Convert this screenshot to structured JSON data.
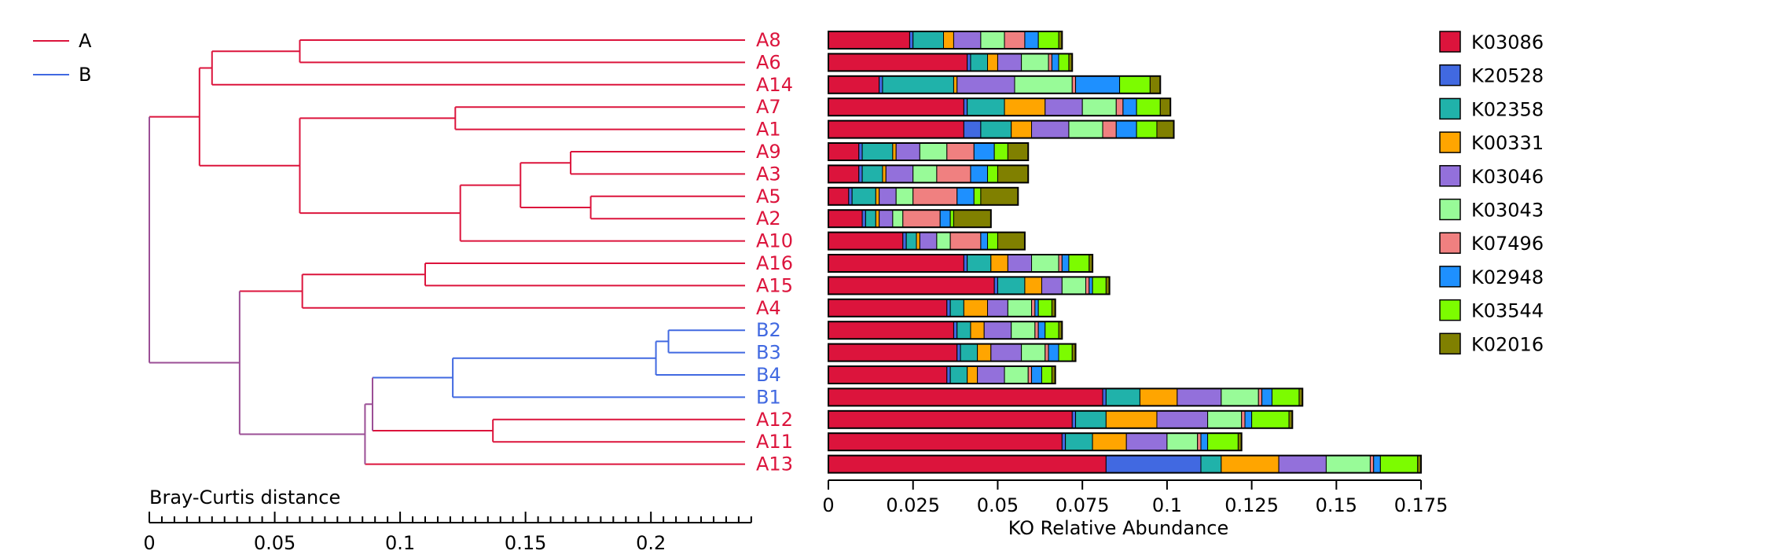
{
  "colors": {
    "group_A": "#DC143C",
    "group_B": "#4169E1",
    "root_branch": "#9B4F96",
    "bar_outline": "#000000"
  },
  "chart_data": [
    {
      "type": "dendrogram",
      "title": "",
      "axis_label": "Bray-Curtis distance",
      "axis_ticks": [
        "0",
        "0.05",
        "0.1",
        "0.15",
        "0.2"
      ],
      "tick_values": [
        0,
        0.05,
        0.1,
        0.15,
        0.2
      ],
      "xlim": [
        0,
        0.24
      ],
      "legend": {
        "placement": "top-left",
        "entries": [
          {
            "label": "A",
            "color": "#DC143C"
          },
          {
            "label": "B",
            "color": "#4169E1"
          }
        ]
      },
      "leaves": [
        "A8",
        "A6",
        "A14",
        "A7",
        "A1",
        "A9",
        "A3",
        "A5",
        "A2",
        "A10",
        "A16",
        "A15",
        "A4",
        "B2",
        "B3",
        "B4",
        "B1",
        "A12",
        "A11",
        "A13"
      ],
      "leaf_groups": [
        "A",
        "A",
        "A",
        "A",
        "A",
        "A",
        "A",
        "A",
        "A",
        "A",
        "A",
        "A",
        "A",
        "B",
        "B",
        "B",
        "B",
        "A",
        "A",
        "A"
      ],
      "merges": [
        {
          "children": [
            "A8",
            "A6"
          ],
          "height": 0.06,
          "group": "A"
        },
        {
          "children": [
            "c0",
            "A14"
          ],
          "height": 0.025,
          "group": "A"
        },
        {
          "children": [
            "A7",
            "A1"
          ],
          "height": 0.122,
          "group": "A"
        },
        {
          "children": [
            "A9",
            "A3"
          ],
          "height": 0.168,
          "group": "A"
        },
        {
          "children": [
            "A5",
            "A2"
          ],
          "height": 0.176,
          "group": "A"
        },
        {
          "children": [
            "c3",
            "c4"
          ],
          "height": 0.148,
          "group": "A"
        },
        {
          "children": [
            "c5",
            "A10"
          ],
          "height": 0.124,
          "group": "A"
        },
        {
          "children": [
            "c2",
            "c6"
          ],
          "height": 0.06,
          "group": "A"
        },
        {
          "children": [
            "c1",
            "c7"
          ],
          "height": 0.02,
          "group": "A"
        },
        {
          "children": [
            "A16",
            "A15"
          ],
          "height": 0.11,
          "group": "A"
        },
        {
          "children": [
            "c9",
            "A4"
          ],
          "height": 0.061,
          "group": "A"
        },
        {
          "children": [
            "B2",
            "B3"
          ],
          "height": 0.207,
          "group": "B"
        },
        {
          "children": [
            "c11",
            "B4"
          ],
          "height": 0.202,
          "group": "B"
        },
        {
          "children": [
            "c12",
            "B1"
          ],
          "height": 0.121,
          "group": "B"
        },
        {
          "children": [
            "A12",
            "A11"
          ],
          "height": 0.137,
          "group": "A"
        },
        {
          "children": [
            "c13",
            "c14"
          ],
          "height": 0.089,
          "group": "mixed"
        },
        {
          "children": [
            "c15",
            "A13"
          ],
          "height": 0.086,
          "group": "mixed"
        },
        {
          "children": [
            "c10",
            "c16"
          ],
          "height": 0.036,
          "group": "mixed"
        },
        {
          "children": [
            "c8",
            "c17"
          ],
          "height": 0,
          "group": "mixed"
        }
      ]
    },
    {
      "type": "bar",
      "orientation": "horizontal",
      "stacked": true,
      "xlabel": "KO Relative Abundance",
      "x_ticks": [
        "0",
        "0.025",
        "0.05",
        "0.075",
        "0.1",
        "0.125",
        "0.15",
        "0.175"
      ],
      "tick_values": [
        0,
        0.025,
        0.05,
        0.075,
        0.1,
        0.125,
        0.15,
        0.175
      ],
      "xlim": [
        0,
        0.175
      ],
      "grid": false,
      "categories": [
        "A8",
        "A6",
        "A14",
        "A7",
        "A1",
        "A9",
        "A3",
        "A5",
        "A2",
        "A10",
        "A16",
        "A15",
        "A4",
        "B2",
        "B3",
        "B4",
        "B1",
        "A12",
        "A11",
        "A13"
      ],
      "legend": {
        "placement": "right"
      },
      "series": [
        {
          "name": "K03086",
          "color": "#DC143C",
          "values": [
            0.024,
            0.041,
            0.015,
            0.04,
            0.04,
            0.009,
            0.009,
            0.006,
            0.01,
            0.022,
            0.04,
            0.049,
            0.035,
            0.037,
            0.038,
            0.035,
            0.081,
            0.072,
            0.069,
            0.082
          ]
        },
        {
          "name": "K20528",
          "color": "#4169E1",
          "values": [
            0.001,
            0.001,
            0.001,
            0.001,
            0.005,
            0.001,
            0.001,
            0.001,
            0.001,
            0.001,
            0.001,
            0.001,
            0.001,
            0.001,
            0.001,
            0.001,
            0.001,
            0.001,
            0.001,
            0.028
          ]
        },
        {
          "name": "K02358",
          "color": "#20B2AA",
          "values": [
            0.009,
            0.005,
            0.021,
            0.011,
            0.009,
            0.009,
            0.006,
            0.007,
            0.003,
            0.003,
            0.007,
            0.008,
            0.004,
            0.004,
            0.005,
            0.005,
            0.01,
            0.009,
            0.008,
            0.006
          ]
        },
        {
          "name": "K00331",
          "color": "#FFA500",
          "values": [
            0.003,
            0.003,
            0.001,
            0.012,
            0.006,
            0.001,
            0.001,
            0.001,
            0.001,
            0.001,
            0.005,
            0.005,
            0.007,
            0.004,
            0.004,
            0.003,
            0.011,
            0.015,
            0.01,
            0.017
          ]
        },
        {
          "name": "K03046",
          "color": "#9370DB",
          "values": [
            0.008,
            0.007,
            0.017,
            0.011,
            0.011,
            0.007,
            0.008,
            0.005,
            0.004,
            0.005,
            0.007,
            0.006,
            0.006,
            0.008,
            0.009,
            0.008,
            0.013,
            0.015,
            0.012,
            0.014
          ]
        },
        {
          "name": "K03043",
          "color": "#98FB98",
          "values": [
            0.007,
            0.008,
            0.017,
            0.01,
            0.01,
            0.008,
            0.007,
            0.005,
            0.003,
            0.004,
            0.008,
            0.007,
            0.007,
            0.007,
            0.007,
            0.007,
            0.011,
            0.01,
            0.009,
            0.013
          ]
        },
        {
          "name": "K07496",
          "color": "#F08080",
          "values": [
            0.006,
            0.001,
            0.001,
            0.002,
            0.004,
            0.008,
            0.01,
            0.013,
            0.011,
            0.009,
            0.001,
            0.001,
            0.001,
            0.001,
            0.001,
            0.001,
            0.001,
            0.001,
            0.001,
            0.001
          ]
        },
        {
          "name": "K02948",
          "color": "#1E90FF",
          "values": [
            0.004,
            0.002,
            0.013,
            0.004,
            0.006,
            0.006,
            0.005,
            0.005,
            0.003,
            0.002,
            0.002,
            0.001,
            0.001,
            0.002,
            0.003,
            0.003,
            0.003,
            0.002,
            0.002,
            0.002
          ]
        },
        {
          "name": "K03544",
          "color": "#7CFC00",
          "values": [
            0.006,
            0.003,
            0.009,
            0.007,
            0.006,
            0.004,
            0.003,
            0.002,
            0.001,
            0.003,
            0.006,
            0.004,
            0.004,
            0.004,
            0.004,
            0.003,
            0.008,
            0.011,
            0.009,
            0.011
          ]
        },
        {
          "name": "K02016",
          "color": "#808000",
          "values": [
            0.001,
            0.001,
            0.003,
            0.003,
            0.005,
            0.006,
            0.009,
            0.011,
            0.011,
            0.008,
            0.001,
            0.001,
            0.001,
            0.001,
            0.001,
            0.001,
            0.001,
            0.001,
            0.001,
            0.001
          ]
        }
      ]
    }
  ]
}
